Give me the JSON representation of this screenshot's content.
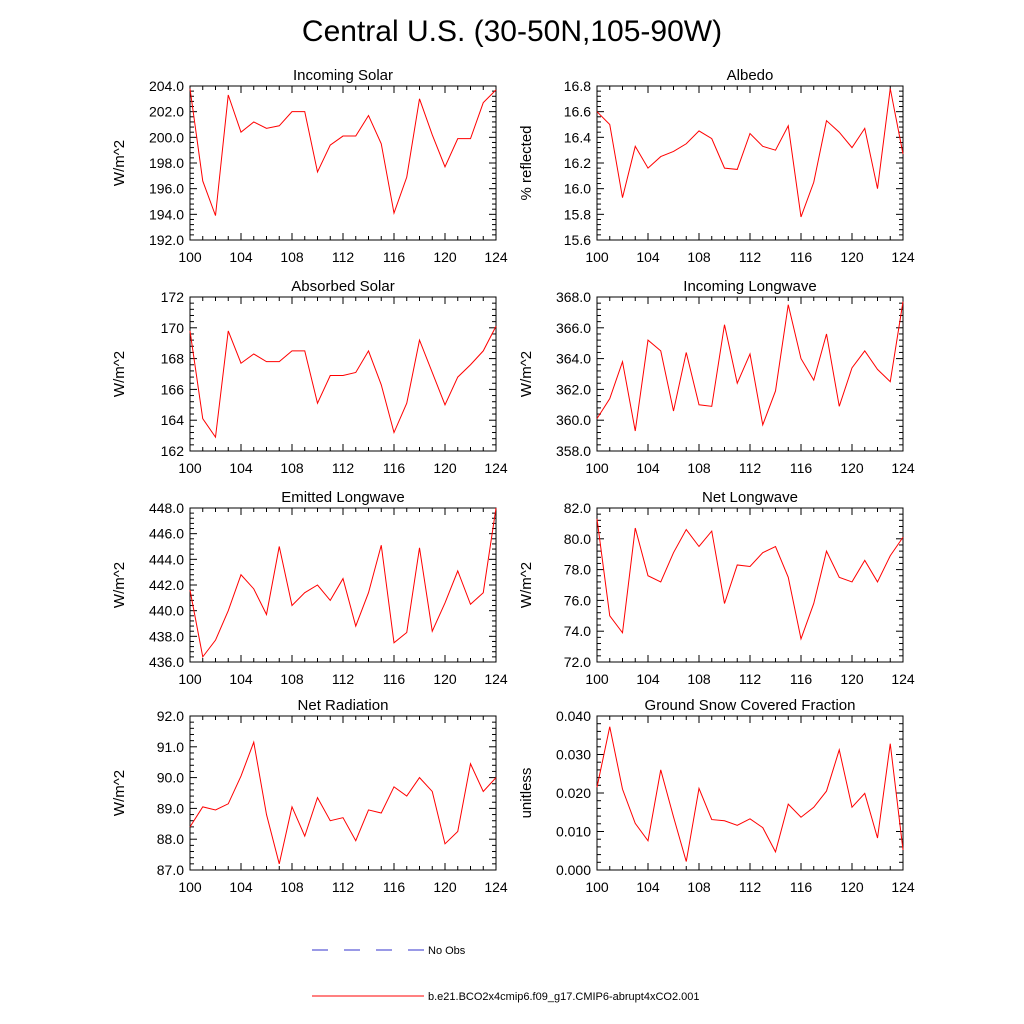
{
  "figure": {
    "title": "Central U.S. (30-50N,105-90W)"
  },
  "colors": {
    "model_line": "#ff0000",
    "obs_line": "#3333cc",
    "axis": "#000000"
  },
  "legend": [
    {
      "label": "No Obs",
      "style": "dashed",
      "color": "#3333cc"
    },
    {
      "label": "b.e21.BCO2x4cmip6.f09_g17.CMIP6-abrupt4xCO2.001",
      "style": "solid",
      "color": "#ff0000"
    }
  ],
  "chart_data": [
    {
      "type": "line",
      "title": "Incoming Solar",
      "xlabel": "",
      "ylabel": "W/m^2",
      "xlim": [
        100,
        124
      ],
      "ylim": [
        192,
        204
      ],
      "xticks": [
        "100",
        "104",
        "108",
        "112",
        "116",
        "120",
        "124"
      ],
      "yticks": [
        "192.0",
        "194.0",
        "196.0",
        "198.0",
        "200.0",
        "202.0",
        "204.0"
      ],
      "x": [
        100,
        101,
        102,
        103,
        104,
        105,
        106,
        107,
        108,
        109,
        110,
        111,
        112,
        113,
        114,
        115,
        116,
        117,
        118,
        119,
        120,
        121,
        122,
        123,
        124
      ],
      "series": [
        {
          "values": [
            203.8,
            196.6,
            193.9,
            203.3,
            200.4,
            201.2,
            200.7,
            200.9,
            202.0,
            202.0,
            197.3,
            199.4,
            200.1,
            200.1,
            201.7,
            199.5,
            194.1,
            196.9,
            203.0,
            200.2,
            197.7,
            199.9,
            199.9,
            202.7,
            203.7
          ]
        }
      ]
    },
    {
      "type": "line",
      "title": "Albedo",
      "xlabel": "",
      "ylabel": "% reflected",
      "xlim": [
        100,
        124
      ],
      "ylim": [
        15.6,
        16.8
      ],
      "xticks": [
        "100",
        "104",
        "108",
        "112",
        "116",
        "120",
        "124"
      ],
      "yticks": [
        "15.6",
        "15.8",
        "16.0",
        "16.2",
        "16.4",
        "16.6",
        "16.8"
      ],
      "x": [
        100,
        101,
        102,
        103,
        104,
        105,
        106,
        107,
        108,
        109,
        110,
        111,
        112,
        113,
        114,
        115,
        116,
        117,
        118,
        119,
        120,
        121,
        122,
        123,
        124
      ],
      "series": [
        {
          "values": [
            16.6,
            16.5,
            15.93,
            16.33,
            16.16,
            16.25,
            16.29,
            16.35,
            16.45,
            16.39,
            16.16,
            16.15,
            16.43,
            16.33,
            16.3,
            16.49,
            15.78,
            16.05,
            16.53,
            16.44,
            16.32,
            16.47,
            16.0,
            16.78,
            16.27
          ]
        }
      ]
    },
    {
      "type": "line",
      "title": "Absorbed Solar",
      "xlabel": "",
      "ylabel": "W/m^2",
      "xlim": [
        100,
        124
      ],
      "ylim": [
        162,
        172
      ],
      "xticks": [
        "100",
        "104",
        "108",
        "112",
        "116",
        "120",
        "124"
      ],
      "yticks": [
        "162",
        "164",
        "166",
        "168",
        "170",
        "172"
      ],
      "x": [
        100,
        101,
        102,
        103,
        104,
        105,
        106,
        107,
        108,
        109,
        110,
        111,
        112,
        113,
        114,
        115,
        116,
        117,
        118,
        119,
        120,
        121,
        122,
        123,
        124
      ],
      "series": [
        {
          "values": [
            169.8,
            164.1,
            162.9,
            169.8,
            167.7,
            168.3,
            167.8,
            167.8,
            168.5,
            168.5,
            165.1,
            166.9,
            166.9,
            167.1,
            168.5,
            166.3,
            163.2,
            165.1,
            169.2,
            167.1,
            165.0,
            166.8,
            167.6,
            168.5,
            170.1
          ]
        }
      ]
    },
    {
      "type": "line",
      "title": "Incoming Longwave",
      "xlabel": "",
      "ylabel": "W/m^2",
      "xlim": [
        100,
        124
      ],
      "ylim": [
        358,
        368
      ],
      "xticks": [
        "100",
        "104",
        "108",
        "112",
        "116",
        "120",
        "124"
      ],
      "yticks": [
        "358.0",
        "360.0",
        "362.0",
        "364.0",
        "366.0",
        "368.0"
      ],
      "x": [
        100,
        101,
        102,
        103,
        104,
        105,
        106,
        107,
        108,
        109,
        110,
        111,
        112,
        113,
        114,
        115,
        116,
        117,
        118,
        119,
        120,
        121,
        122,
        123,
        124
      ],
      "series": [
        {
          "values": [
            360.1,
            361.4,
            363.8,
            359.3,
            365.2,
            364.5,
            360.6,
            364.4,
            361.0,
            360.9,
            366.2,
            362.4,
            364.3,
            359.7,
            361.9,
            367.5,
            364.0,
            362.6,
            365.6,
            360.9,
            363.4,
            364.5,
            363.3,
            362.5,
            367.7
          ]
        }
      ]
    },
    {
      "type": "line",
      "title": "Emitted Longwave",
      "xlabel": "",
      "ylabel": "W/m^2",
      "xlim": [
        100,
        124
      ],
      "ylim": [
        436,
        448
      ],
      "xticks": [
        "100",
        "104",
        "108",
        "112",
        "116",
        "120",
        "124"
      ],
      "yticks": [
        "436.0",
        "438.0",
        "440.0",
        "442.0",
        "444.0",
        "446.0",
        "448.0"
      ],
      "x": [
        100,
        101,
        102,
        103,
        104,
        105,
        106,
        107,
        108,
        109,
        110,
        111,
        112,
        113,
        114,
        115,
        116,
        117,
        118,
        119,
        120,
        121,
        122,
        123,
        124
      ],
      "series": [
        {
          "values": [
            441.6,
            436.4,
            437.7,
            440.0,
            442.8,
            441.7,
            439.7,
            445.0,
            440.4,
            441.4,
            442.0,
            440.8,
            442.5,
            438.8,
            441.4,
            445.1,
            437.5,
            438.3,
            444.9,
            438.4,
            440.6,
            443.1,
            440.5,
            441.4,
            448.0
          ]
        }
      ]
    },
    {
      "type": "line",
      "title": "Net Longwave",
      "xlabel": "",
      "ylabel": "W/m^2",
      "xlim": [
        100,
        124
      ],
      "ylim": [
        72,
        82
      ],
      "xticks": [
        "100",
        "104",
        "108",
        "112",
        "116",
        "120",
        "124"
      ],
      "yticks": [
        "72.0",
        "74.0",
        "76.0",
        "78.0",
        "80.0",
        "82.0"
      ],
      "x": [
        100,
        101,
        102,
        103,
        104,
        105,
        106,
        107,
        108,
        109,
        110,
        111,
        112,
        113,
        114,
        115,
        116,
        117,
        118,
        119,
        120,
        121,
        122,
        123,
        124
      ],
      "series": [
        {
          "values": [
            81.3,
            75.0,
            73.9,
            80.7,
            77.6,
            77.2,
            79.1,
            80.6,
            79.5,
            80.5,
            75.8,
            78.3,
            78.2,
            79.1,
            79.5,
            77.5,
            73.5,
            75.8,
            79.2,
            77.5,
            77.2,
            78.6,
            77.2,
            78.9,
            80.1
          ]
        }
      ]
    },
    {
      "type": "line",
      "title": "Net Radiation",
      "xlabel": "",
      "ylabel": "W/m^2",
      "xlim": [
        100,
        124
      ],
      "ylim": [
        87,
        92
      ],
      "xticks": [
        "100",
        "104",
        "108",
        "112",
        "116",
        "120",
        "124"
      ],
      "yticks": [
        "87.0",
        "88.0",
        "89.0",
        "90.0",
        "91.0",
        "92.0"
      ],
      "x": [
        100,
        101,
        102,
        103,
        104,
        105,
        106,
        107,
        108,
        109,
        110,
        111,
        112,
        113,
        114,
        115,
        116,
        117,
        118,
        119,
        120,
        121,
        122,
        123,
        124
      ],
      "series": [
        {
          "values": [
            88.4,
            89.05,
            88.95,
            89.15,
            90.05,
            91.15,
            88.8,
            87.2,
            89.05,
            88.1,
            89.35,
            88.6,
            88.7,
            87.95,
            88.95,
            88.85,
            89.7,
            89.4,
            90.0,
            89.55,
            87.85,
            88.25,
            90.45,
            89.55,
            90.0
          ]
        }
      ]
    },
    {
      "type": "line",
      "title": "Ground Snow Covered Fraction",
      "xlabel": "",
      "ylabel": "unitless",
      "xlim": [
        100,
        124
      ],
      "ylim": [
        0.0,
        0.04
      ],
      "xticks": [
        "100",
        "104",
        "108",
        "112",
        "116",
        "120",
        "124"
      ],
      "yticks": [
        "0.000",
        "0.010",
        "0.020",
        "0.030",
        "0.040"
      ],
      "x": [
        100,
        101,
        102,
        103,
        104,
        105,
        106,
        107,
        108,
        109,
        110,
        111,
        112,
        113,
        114,
        115,
        116,
        117,
        118,
        119,
        120,
        121,
        122,
        123,
        124
      ],
      "series": [
        {
          "values": [
            0.0215,
            0.0372,
            0.021,
            0.0121,
            0.0076,
            0.026,
            0.0138,
            0.0022,
            0.0212,
            0.0131,
            0.0128,
            0.0116,
            0.0133,
            0.011,
            0.0047,
            0.0171,
            0.0137,
            0.0163,
            0.0205,
            0.0312,
            0.0163,
            0.0199,
            0.0083,
            0.0328,
            0.0052
          ]
        }
      ]
    }
  ]
}
